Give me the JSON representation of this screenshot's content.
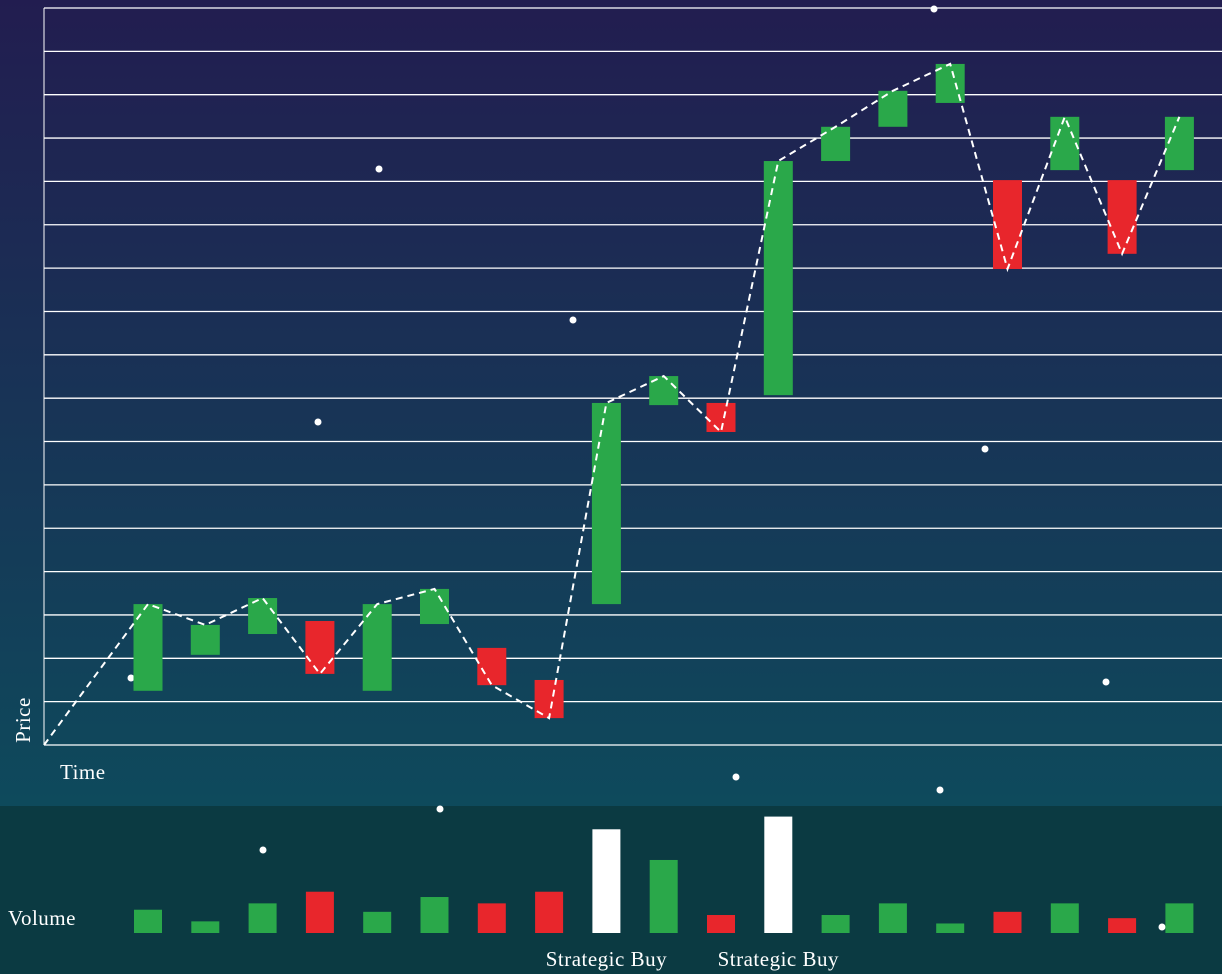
{
  "chart_data": {
    "type": "candlestick",
    "y_label": "Price",
    "x_label": "Time",
    "ylim": [
      0,
      17
    ],
    "yticks": [
      0,
      1,
      2,
      3,
      4,
      5,
      6,
      7,
      8,
      9,
      10,
      11,
      12,
      13,
      14,
      15,
      16,
      17
    ],
    "grid": true,
    "up_color": "#2aa84a",
    "down_color": "#e8262c",
    "open": [
      1.25,
      2.08,
      2.56,
      2.86,
      1.25,
      2.79,
      2.24,
      1.5,
      3.25,
      7.84,
      7.89,
      8.07,
      13.47,
      14.26,
      14.81,
      13.03,
      13.26,
      13.03,
      13.26
    ],
    "close": [
      3.25,
      2.77,
      3.39,
      1.64,
      3.25,
      3.6,
      1.38,
      0.62,
      7.89,
      8.51,
      7.22,
      13.47,
      14.26,
      15.09,
      15.71,
      10.98,
      14.49,
      11.33,
      14.49
    ],
    "volume": {
      "label": "Volume",
      "ylim": [
        0,
        120
      ],
      "values": [
        22,
        11,
        28,
        39,
        20,
        34,
        28,
        39,
        98,
        69,
        17,
        110,
        17,
        28,
        9,
        20,
        28,
        14,
        28
      ],
      "colors": [
        "#2aa84a",
        "#2aa84a",
        "#2aa84a",
        "#e8262c",
        "#2aa84a",
        "#2aa84a",
        "#e8262c",
        "#e8262c",
        "#ffffff",
        "#2aa84a",
        "#e8262c",
        "#ffffff",
        "#2aa84a",
        "#2aa84a",
        "#2aa84a",
        "#e8262c",
        "#2aa84a",
        "#e8262c",
        "#2aa84a"
      ]
    },
    "annotations": [
      {
        "index": 8,
        "text": "Strategic Buy"
      },
      {
        "index": 11,
        "text": "Strategic Buy"
      }
    ]
  }
}
